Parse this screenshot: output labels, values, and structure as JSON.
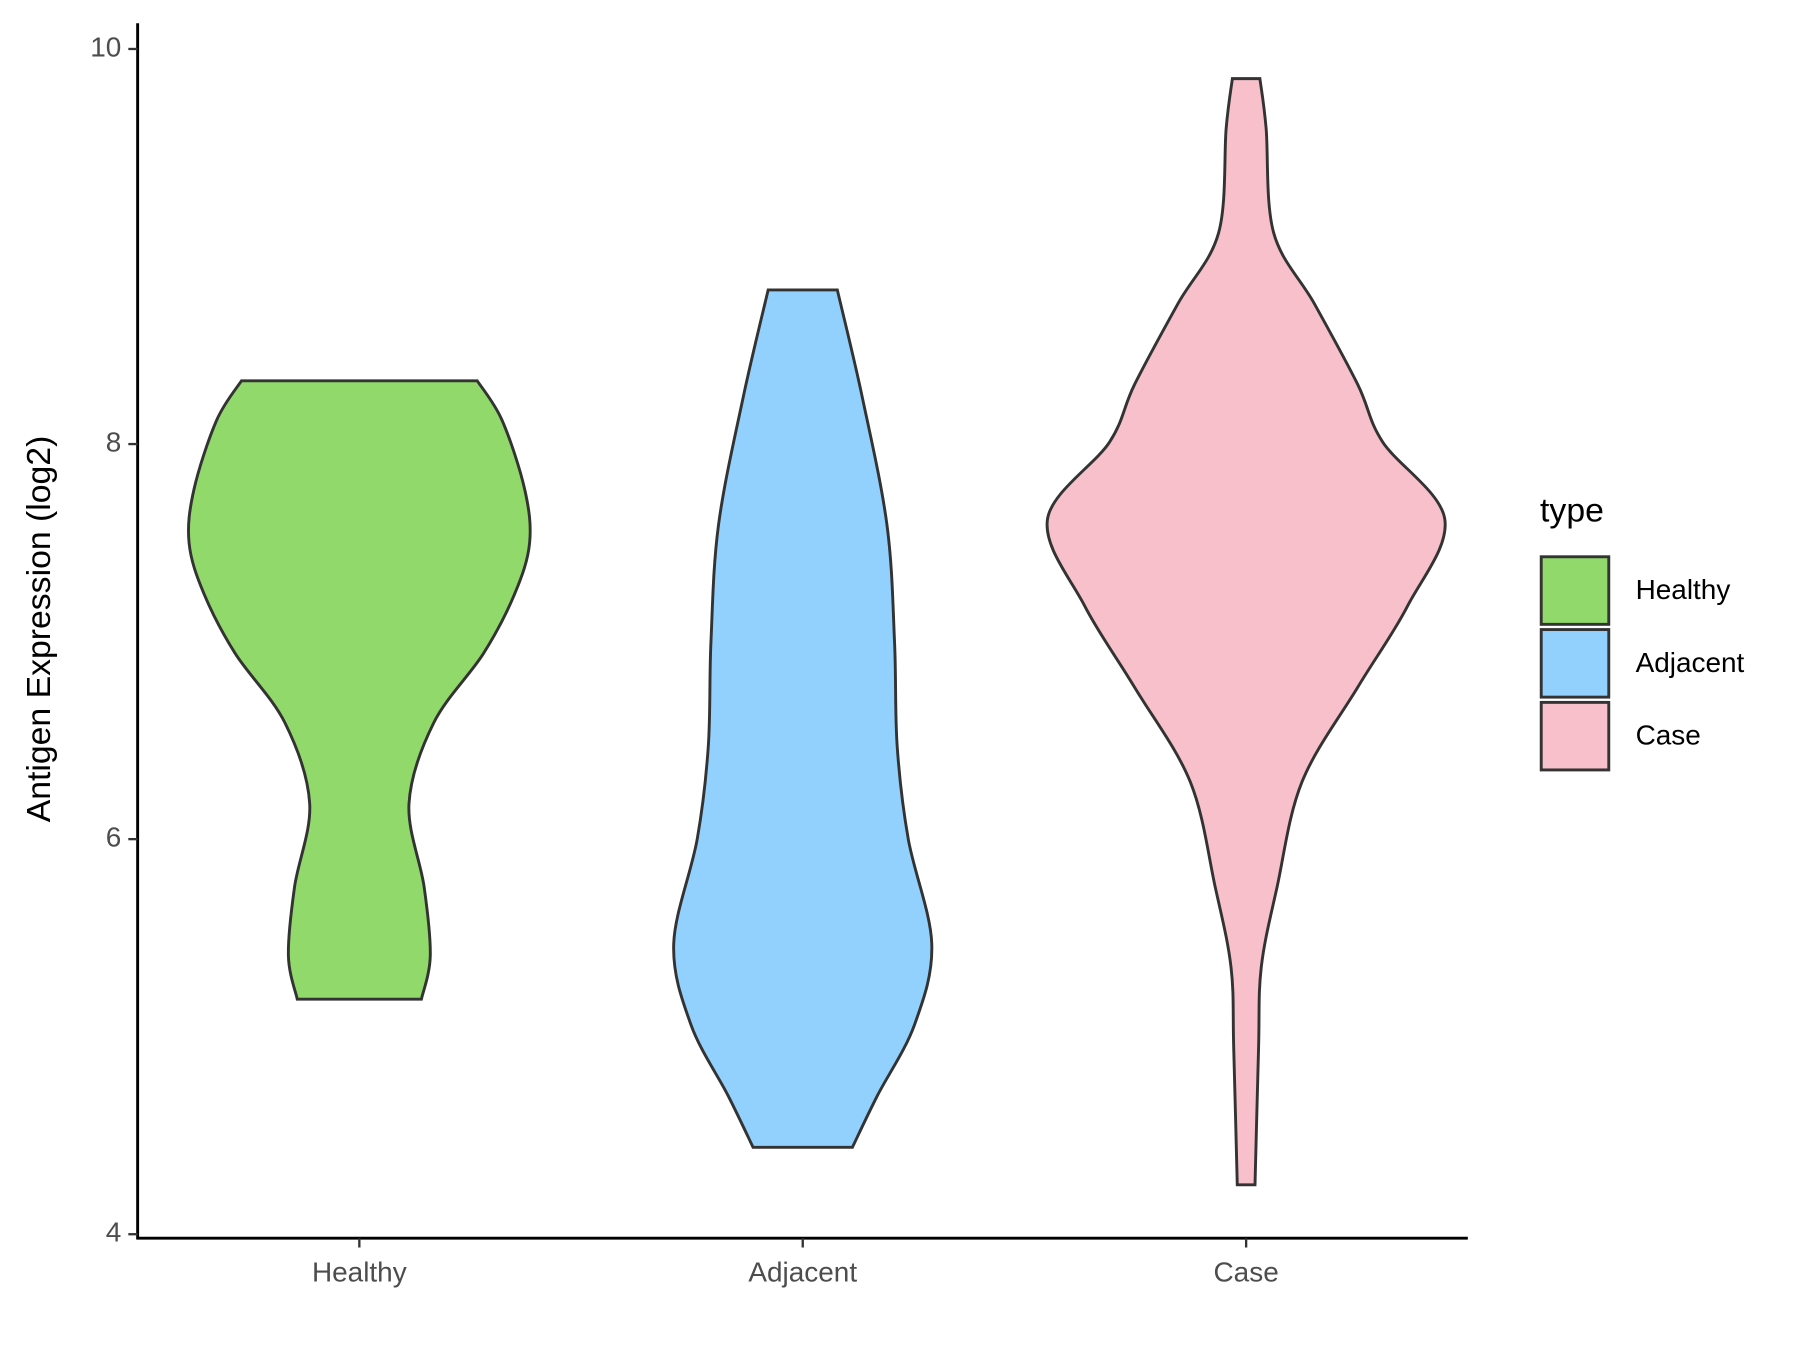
{
  "chart_data": {
    "type": "violin",
    "y_label": "Antigen Expression (log2)",
    "categories": [
      "Healthy",
      "Adjacent",
      "Case"
    ],
    "legend_title": "type",
    "legend": "right",
    "ylim": [
      3.98,
      10.13
    ],
    "yticks": [
      4,
      6,
      8,
      10
    ],
    "series": [
      {
        "name": "Healthy",
        "color": "#92d96b",
        "y": [
          8.32,
          8.12,
          7.77,
          7.5,
          7.24,
          6.94,
          6.59,
          6.18,
          5.76,
          5.41,
          5.19
        ],
        "half_width": [
          0.266,
          0.322,
          0.373,
          0.384,
          0.35,
          0.28,
          0.168,
          0.112,
          0.146,
          0.16,
          0.14
        ]
      },
      {
        "name": "Adjacent",
        "color": "#92d1fe",
        "y": [
          8.78,
          8.24,
          7.59,
          7.0,
          6.47,
          6.0,
          5.47,
          5.06,
          4.7,
          4.44
        ],
        "half_width": [
          0.078,
          0.134,
          0.19,
          0.207,
          0.213,
          0.238,
          0.291,
          0.252,
          0.168,
          0.112
        ]
      },
      {
        "name": "Case",
        "color": "#f7c0cb",
        "y": [
          9.85,
          9.6,
          9.07,
          8.71,
          8.3,
          8.01,
          7.62,
          7.18,
          6.77,
          6.29,
          5.76,
          5.35,
          4.94,
          4.25
        ],
        "half_width": [
          0.031,
          0.045,
          0.062,
          0.154,
          0.252,
          0.308,
          0.448,
          0.364,
          0.252,
          0.126,
          0.07,
          0.034,
          0.028,
          0.02
        ]
      }
    ]
  }
}
